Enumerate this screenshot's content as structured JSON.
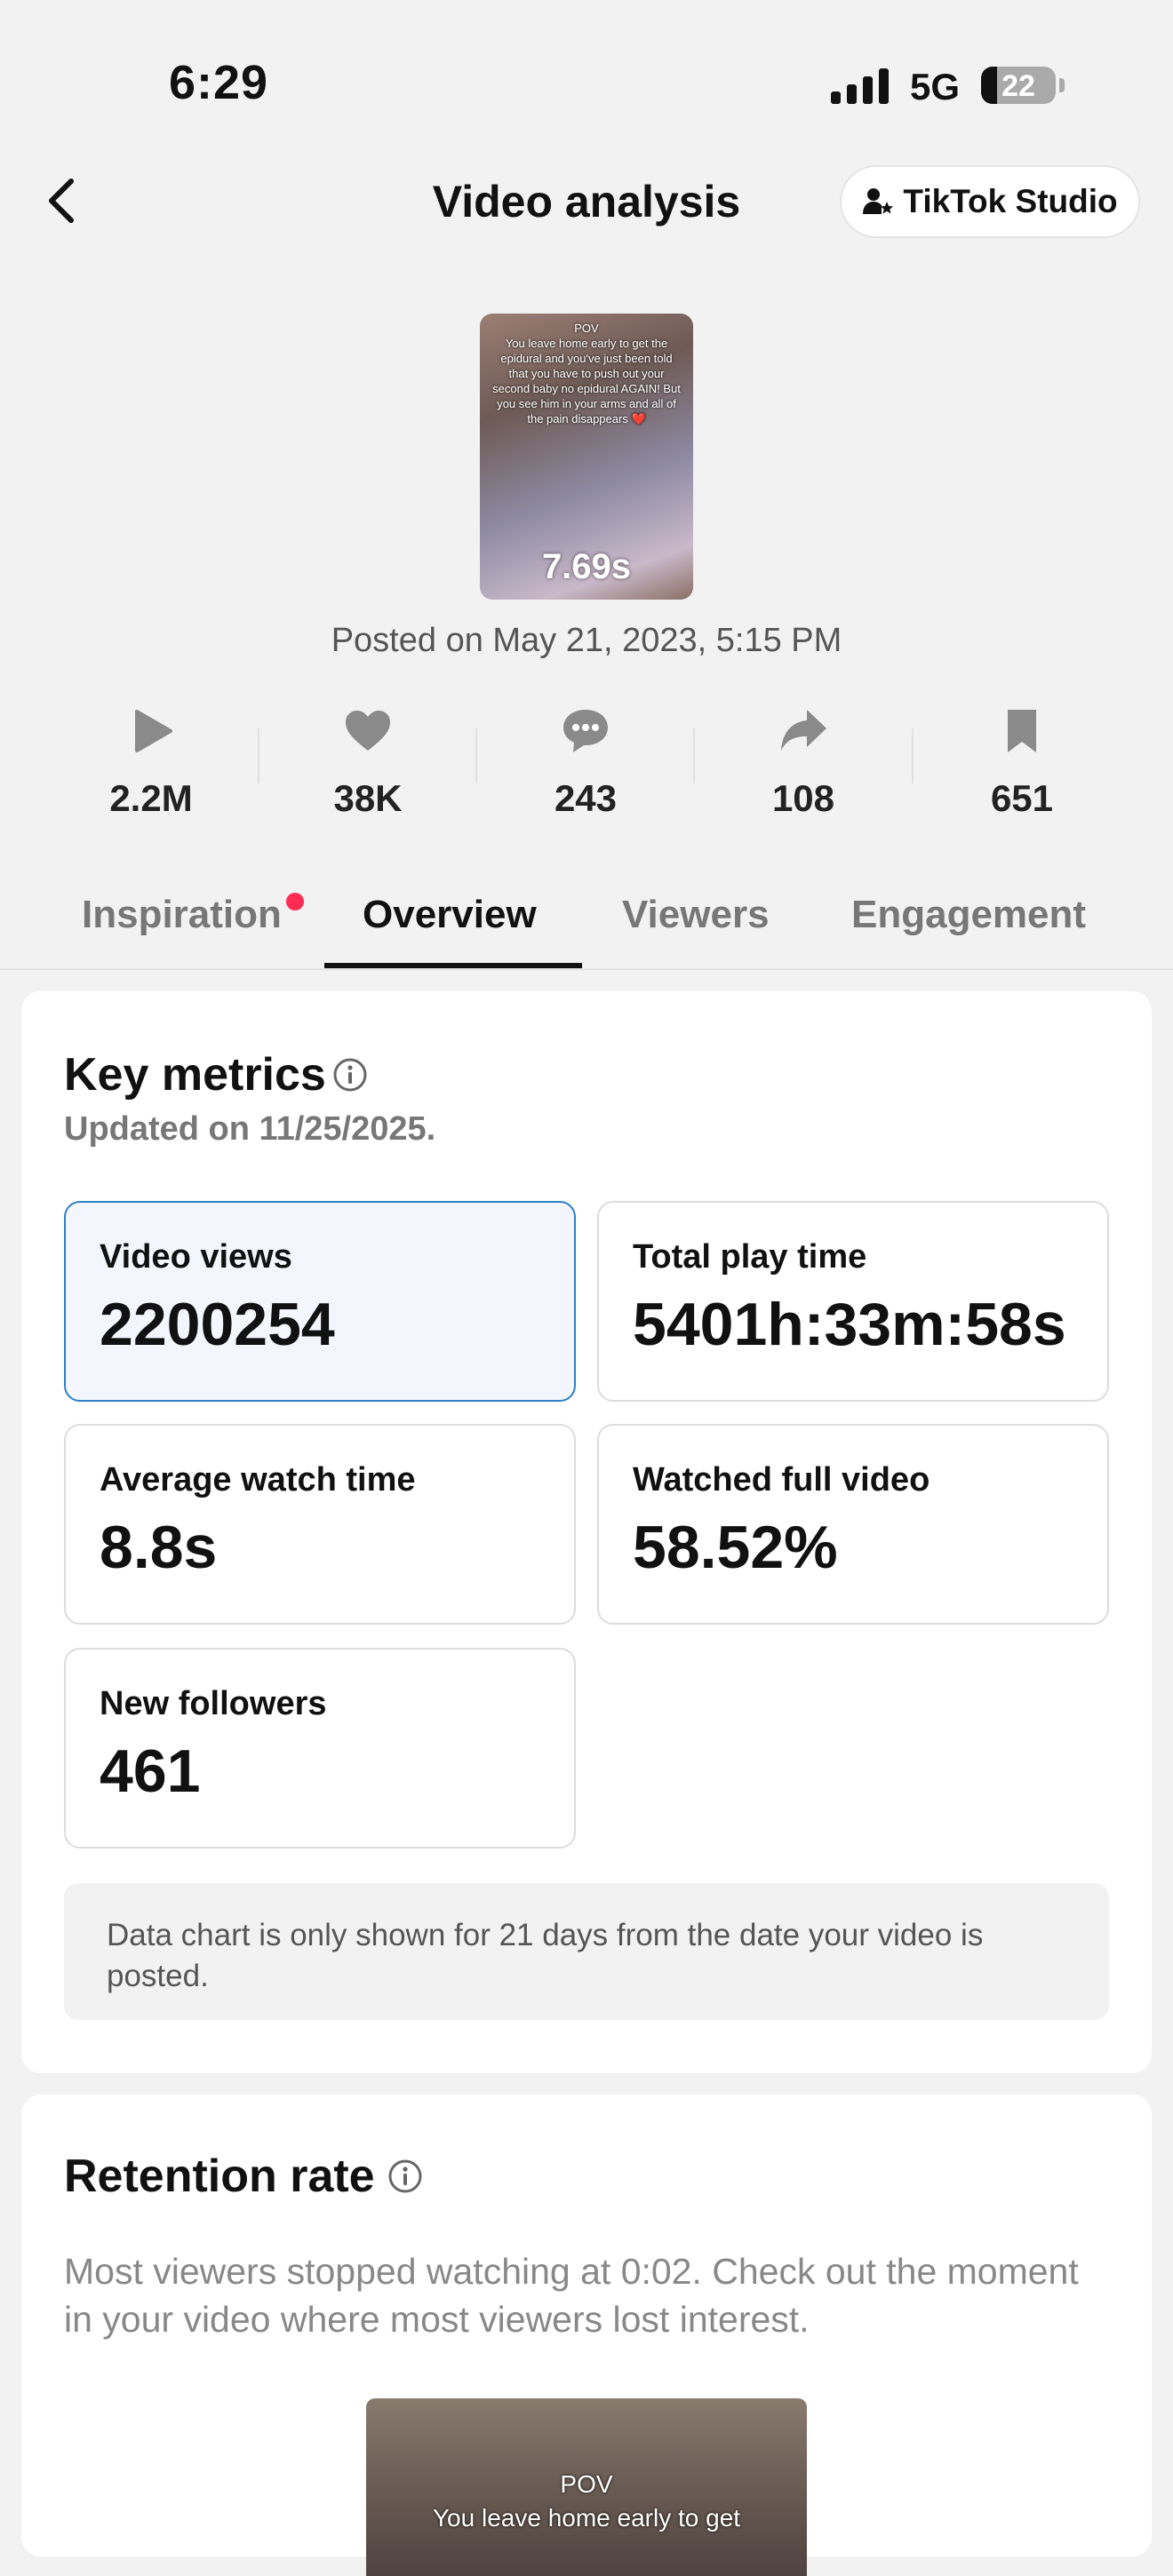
{
  "status_bar": {
    "time": "6:29",
    "network": "5G",
    "battery": "22"
  },
  "header": {
    "title": "Video analysis",
    "studio_button": "TikTok Studio"
  },
  "video": {
    "caption_pov": "POV",
    "caption_text": "You leave home early to get the epidural and you've just been told that you have to push out your second baby no epidural AGAIN! But you see him in your arms and all of the pain disappears ❤️",
    "duration": "7.69s",
    "posted": "Posted on May 21, 2023, 5:15 PM"
  },
  "stats": [
    {
      "icon": "play-icon",
      "value": "2.2M"
    },
    {
      "icon": "heart-icon",
      "value": "38K"
    },
    {
      "icon": "comment-icon",
      "value": "243"
    },
    {
      "icon": "share-icon",
      "value": "108"
    },
    {
      "icon": "bookmark-icon",
      "value": "651"
    }
  ],
  "tabs": [
    {
      "label": "Inspiration",
      "has_dot": true
    },
    {
      "label": "Overview",
      "active": true
    },
    {
      "label": "Viewers"
    },
    {
      "label": "Engagement"
    }
  ],
  "key_metrics": {
    "title": "Key metrics",
    "updated": "Updated on 11/25/2025.",
    "items": [
      {
        "label": "Video views",
        "value": "2200254",
        "selected": true
      },
      {
        "label": "Total play time",
        "value": "5401h:33m:58s"
      },
      {
        "label": "Average watch time",
        "value": "8.8s"
      },
      {
        "label": "Watched full video",
        "value": "58.52%"
      },
      {
        "label": "New followers",
        "value": "461"
      }
    ],
    "note": "Data chart is only shown for 21 days from the date your video is posted."
  },
  "retention": {
    "title": "Retention rate",
    "description": "Most viewers stopped watching at 0:02. Check out the moment in your video where most viewers lost interest.",
    "thumb_pov": "POV",
    "thumb_text": "You leave home early to get"
  },
  "colors": {
    "accent_red": "#fe2c55",
    "selected_border": "#2d7fc8",
    "selected_bg": "#f3f7fd"
  }
}
